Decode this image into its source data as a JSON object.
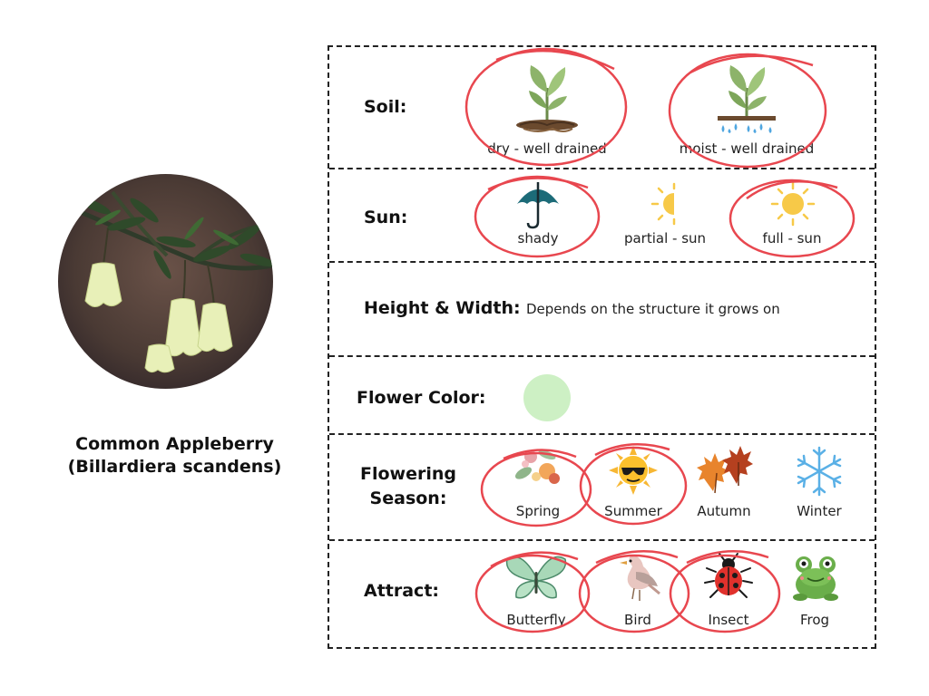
{
  "plant": {
    "common_name": "Common Appleberry",
    "botanical_name": "(Billardiera scandens)"
  },
  "soil": {
    "label": "Soil:",
    "options": [
      {
        "label": "dry - well drained",
        "icon": "seedling-dry-soil-icon",
        "selected": true
      },
      {
        "label": "moist - well drained",
        "icon": "seedling-water-drops-icon",
        "selected": true
      }
    ]
  },
  "sun": {
    "label": "Sun:",
    "options": [
      {
        "label": "shady",
        "icon": "umbrella-icon",
        "selected": true
      },
      {
        "label": "partial - sun",
        "icon": "half-sun-icon",
        "selected": false
      },
      {
        "label": "full - sun",
        "icon": "sun-icon",
        "selected": true
      }
    ]
  },
  "size": {
    "label": "Height & Width:",
    "value": "Depends on the structure it grows on"
  },
  "flower_color": {
    "label": "Flower Color:",
    "swatch": "#cdf0c4"
  },
  "season": {
    "label_line1": "Flowering",
    "label_line2": "Season:",
    "options": [
      {
        "label": "Spring",
        "icon": "spring-flowers-icon",
        "selected": true
      },
      {
        "label": "Summer",
        "icon": "sun-sunglasses-icon",
        "selected": true
      },
      {
        "label": "Autumn",
        "icon": "autumn-leaves-icon",
        "selected": false
      },
      {
        "label": "Winter",
        "icon": "snowflake-icon",
        "selected": false
      }
    ]
  },
  "attract": {
    "label": "Attract:",
    "options": [
      {
        "label": "Butterfly",
        "icon": "butterfly-icon",
        "selected": true
      },
      {
        "label": "Bird",
        "icon": "bird-icon",
        "selected": true
      },
      {
        "label": "Insect",
        "icon": "ladybug-icon",
        "selected": true
      },
      {
        "label": "Frog",
        "icon": "frog-icon",
        "selected": false
      }
    ]
  },
  "colors": {
    "selection_circle": "#e8474f",
    "border": "#222222"
  }
}
